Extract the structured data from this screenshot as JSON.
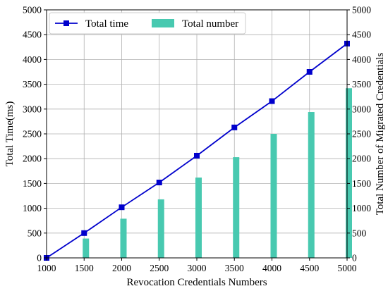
{
  "chart_data": {
    "type": "bar+line",
    "xlabel": "Revocation Credentials Numbers",
    "ylabel_left": "Total Time(ms)",
    "ylabel_right": "Total Number of Migrated Credentials",
    "x": [
      1000,
      1500,
      2000,
      2500,
      3000,
      3500,
      4000,
      4500,
      5000
    ],
    "xlim": [
      1000,
      5000
    ],
    "ylim_left": [
      0,
      5000
    ],
    "ylim_right": [
      0,
      5000
    ],
    "y_ticks": [
      0,
      500,
      1000,
      1500,
      2000,
      2500,
      3000,
      3500,
      4000,
      4500,
      5000
    ],
    "grid": true,
    "legend_placement": "top-left",
    "series": [
      {
        "name": "Total time",
        "kind": "line",
        "axis": "left",
        "color": "#0000cc",
        "marker": "square",
        "values": [
          0,
          500,
          1020,
          1520,
          2060,
          2630,
          3160,
          3750,
          4320
        ]
      },
      {
        "name": "Total number",
        "kind": "bar",
        "axis": "right",
        "color": "#48c9b0",
        "values": [
          0,
          390,
          790,
          1180,
          1620,
          2030,
          2500,
          2940,
          3420
        ]
      }
    ]
  }
}
